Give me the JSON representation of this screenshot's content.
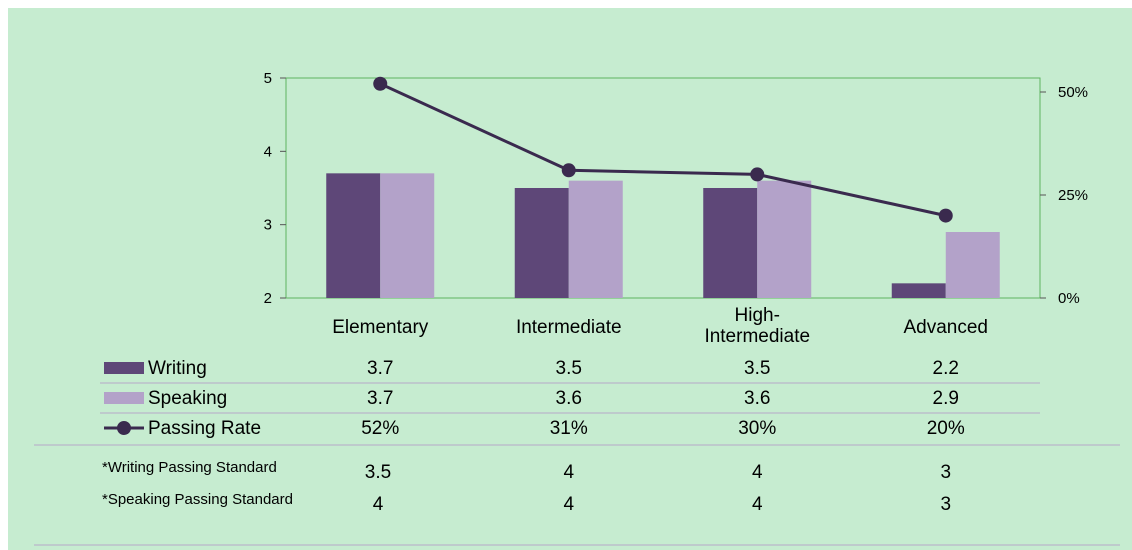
{
  "colors": {
    "background": "#c6ecd0",
    "writing": "#5e4778",
    "speaking": "#b3a2c9",
    "passing_rate": "#3a2a4e",
    "plot_border": "#5fb35f",
    "table_rule": "#b6a8c8"
  },
  "chart_data": {
    "type": "bar",
    "categories": [
      "Elementary",
      "Intermediate",
      "High-Intermediate",
      "Advanced"
    ],
    "category_lines": [
      [
        "Elementary"
      ],
      [
        "Intermediate"
      ],
      [
        "High-",
        "Intermediate"
      ],
      [
        "Advanced"
      ]
    ],
    "series": [
      {
        "name": "Writing",
        "type": "bar",
        "axis": "left",
        "values": [
          3.7,
          3.5,
          3.5,
          2.2
        ],
        "labels": [
          "3.7",
          "3.5",
          "3.5",
          "2.2"
        ]
      },
      {
        "name": "Speaking",
        "type": "bar",
        "axis": "left",
        "values": [
          3.7,
          3.6,
          3.6,
          2.9
        ],
        "labels": [
          "3.7",
          "3.6",
          "3.6",
          "2.9"
        ]
      },
      {
        "name": "Passing Rate",
        "type": "line",
        "axis": "right",
        "values": [
          0.52,
          0.31,
          0.3,
          0.2
        ],
        "labels": [
          "52%",
          "31%",
          "30%",
          "20%"
        ]
      }
    ],
    "y_left": {
      "range": [
        2,
        5
      ],
      "ticks": [
        "2",
        "3",
        "4",
        "5"
      ]
    },
    "y_right": {
      "range": [
        0,
        0.5
      ],
      "ticks": [
        "0%",
        "25%",
        "50%"
      ]
    },
    "grid": false,
    "legend": "data-table"
  },
  "standards": [
    {
      "label": "*Writing Passing Standard",
      "values": [
        "3.5",
        "4",
        "4",
        "3"
      ]
    },
    {
      "label": "*Speaking Passing Standard",
      "values": [
        "4",
        "4",
        "4",
        "3"
      ]
    }
  ]
}
